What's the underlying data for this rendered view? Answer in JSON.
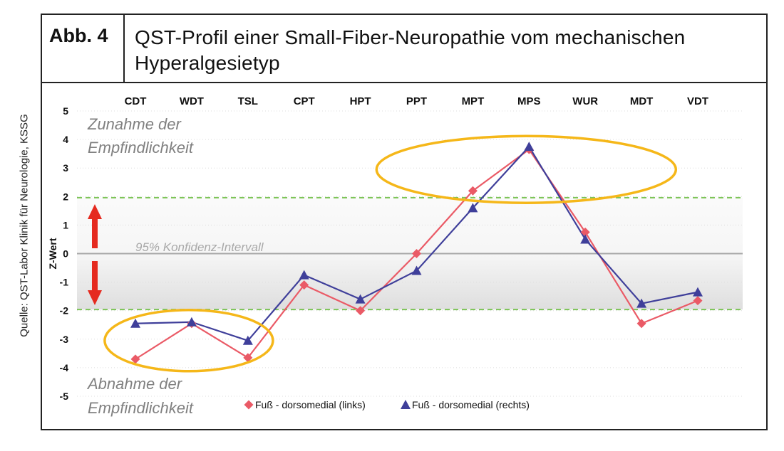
{
  "source": "Quelle: QST-Labor Klinik für Neurologie, KSSG",
  "figure": {
    "label": "Abb. 4",
    "title": "QST-Profil einer Small-Fiber-Neuropathie vom mechanischen Hyperalgesietyp"
  },
  "colors": {
    "links": "#ea5a66",
    "rechts": "#3f3f9a",
    "ellipse": "#f5b719",
    "confidence_line": "#7cc456",
    "arrow": "#e52a1f"
  },
  "chart_data": {
    "type": "line",
    "categories": [
      "CDT",
      "WDT",
      "TSL",
      "CPT",
      "HPT",
      "PPT",
      "MPT",
      "MPS",
      "WUR",
      "MDT",
      "VDT"
    ],
    "series": [
      {
        "name": "Fuß - dorsomedial (links)",
        "marker": "diamond",
        "values": [
          -3.7,
          -2.45,
          -3.65,
          -1.1,
          -2.0,
          0.0,
          2.2,
          3.65,
          0.75,
          -2.45,
          -1.65
        ]
      },
      {
        "name": "Fuß - dorsomedial (rechts)",
        "marker": "triangle",
        "values": [
          -2.45,
          -2.4,
          -3.05,
          -0.75,
          -1.6,
          -0.6,
          1.6,
          3.75,
          0.5,
          -1.75,
          -1.35
        ]
      }
    ],
    "ylabel": "Z-Wert",
    "ylim": [
      -5,
      5
    ],
    "yticks": [
      5,
      4,
      3,
      2,
      1,
      0,
      -1,
      -2,
      -3,
      -4,
      -5
    ],
    "confidence_band": [
      -1.96,
      1.96
    ],
    "grid": true,
    "legend": "bottom",
    "annotations": {
      "top": [
        "Zunahme der",
        "Empfindlichkeit"
      ],
      "bottom": [
        "Abnahme der",
        "Empfindlichkeit"
      ],
      "center": "95% Konfidenz-Intervall"
    }
  }
}
